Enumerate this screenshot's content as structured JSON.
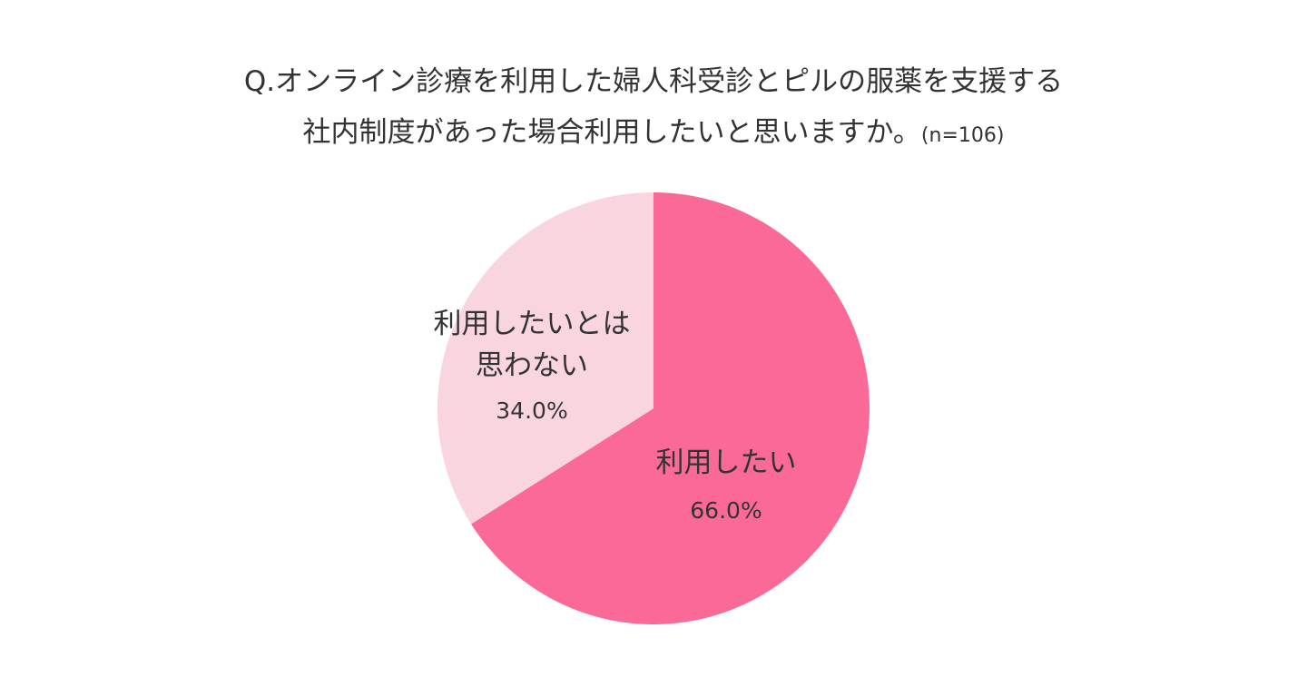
{
  "chart_data": {
    "type": "pie",
    "title_line1": "Q.オンライン診療を利用した婦人科受診とピルの服薬を支援する",
    "title_line2": "社内制度があった場合利用したいと思いますか。",
    "sample_size": "(n=106)",
    "slices": [
      {
        "label": "利用したい",
        "value": 66.0,
        "value_label": "66.0%",
        "color": "#fb6a96"
      },
      {
        "label_lines": [
          "利用したいとは",
          "思わない"
        ],
        "value": 34.0,
        "value_label": "34.0%",
        "color": "#f9d5e0"
      }
    ],
    "start": "top",
    "direction": "clockwise"
  }
}
